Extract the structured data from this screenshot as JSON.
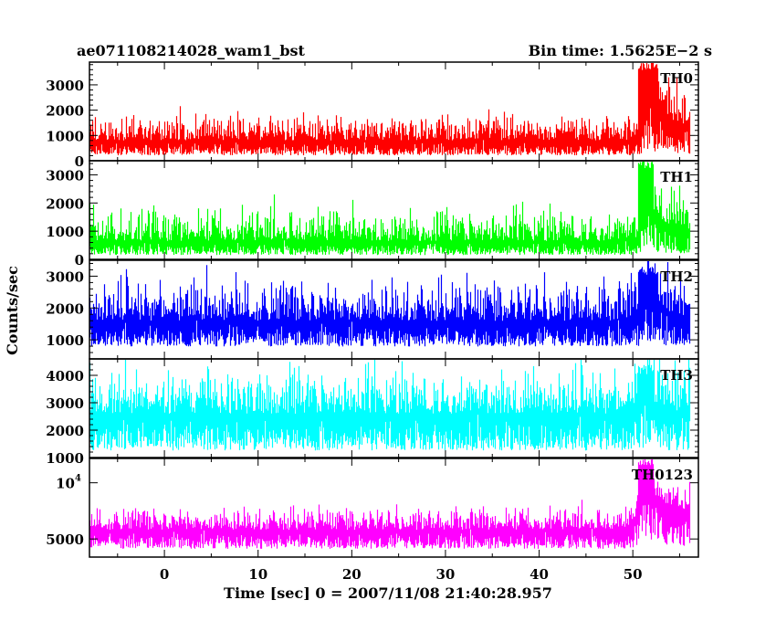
{
  "header": {
    "source_name": "ae071108214028_wam1_bst",
    "bin_time": "Bin time: 1.5625E−2 s"
  },
  "axes": {
    "ylabel": "Counts/sec",
    "xlabel": "Time [sec] 0 = 2007/11/08 21:40:28.957",
    "x_ticks": [
      0,
      10,
      20,
      30,
      40,
      50
    ],
    "xlim": [
      -8,
      57
    ]
  },
  "chart_data": {
    "type": "line",
    "x_range": [
      -8,
      56
    ],
    "bin_time_s": 0.015625,
    "burst_start_s": 50.5,
    "panels": [
      {
        "name": "TH0",
        "color": "#ff0000",
        "ylim": [
          0,
          3900
        ],
        "y_ticks": [
          {
            "v": 0,
            "t": "0"
          },
          {
            "v": 1000,
            "t": "1000"
          },
          {
            "v": 2000,
            "t": "2000"
          },
          {
            "v": 3000,
            "t": "3000"
          }
        ],
        "baseline_mean": 800,
        "baseline_low": 150,
        "baseline_high": 1900,
        "burst_peak_time": 51.5,
        "burst_peak": 3900,
        "burst_end_level": 1300
      },
      {
        "name": "TH1",
        "color": "#00ff00",
        "ylim": [
          0,
          3500
        ],
        "y_ticks": [
          {
            "v": 0,
            "t": "0"
          },
          {
            "v": 1000,
            "t": "1000"
          },
          {
            "v": 2000,
            "t": "2000"
          },
          {
            "v": 3000,
            "t": "3000"
          }
        ],
        "baseline_mean": 650,
        "baseline_low": 100,
        "baseline_high": 1900,
        "burst_peak_time": 51,
        "burst_peak": 3500,
        "burst_end_level": 900
      },
      {
        "name": "TH2",
        "color": "#0000ff",
        "ylim": [
          400,
          3500
        ],
        "y_ticks": [
          {
            "v": 1000,
            "t": "1000"
          },
          {
            "v": 2000,
            "t": "2000"
          },
          {
            "v": 3000,
            "t": "3000"
          }
        ],
        "baseline_mean": 1600,
        "baseline_low": 700,
        "baseline_high": 3000,
        "burst_peak_time": 51.5,
        "burst_peak": 3300,
        "burst_end_level": 1700
      },
      {
        "name": "TH3",
        "color": "#00ffff",
        "ylim": [
          1000,
          4600
        ],
        "y_ticks": [
          {
            "v": 1000,
            "t": "1000"
          },
          {
            "v": 2000,
            "t": "2000"
          },
          {
            "v": 3000,
            "t": "3000"
          },
          {
            "v": 4000,
            "t": "4000"
          }
        ],
        "baseline_mean": 2600,
        "baseline_low": 1100,
        "baseline_high": 4400,
        "burst_peak_time": 51,
        "burst_peak": 4400,
        "burst_end_level": 2600
      },
      {
        "name": "TH0123",
        "color": "#ff00ff",
        "log": true,
        "ylim": [
          4000,
          13500
        ],
        "y_ticks": [
          {
            "v": 5000,
            "t": "5000"
          },
          {
            "v": 10000,
            "t": "10^4"
          }
        ],
        "baseline_mean": 5600,
        "baseline_low": 4300,
        "baseline_high": 7500,
        "burst_peak_time": 51,
        "burst_peak": 13500,
        "burst_end_level": 7000
      }
    ]
  }
}
